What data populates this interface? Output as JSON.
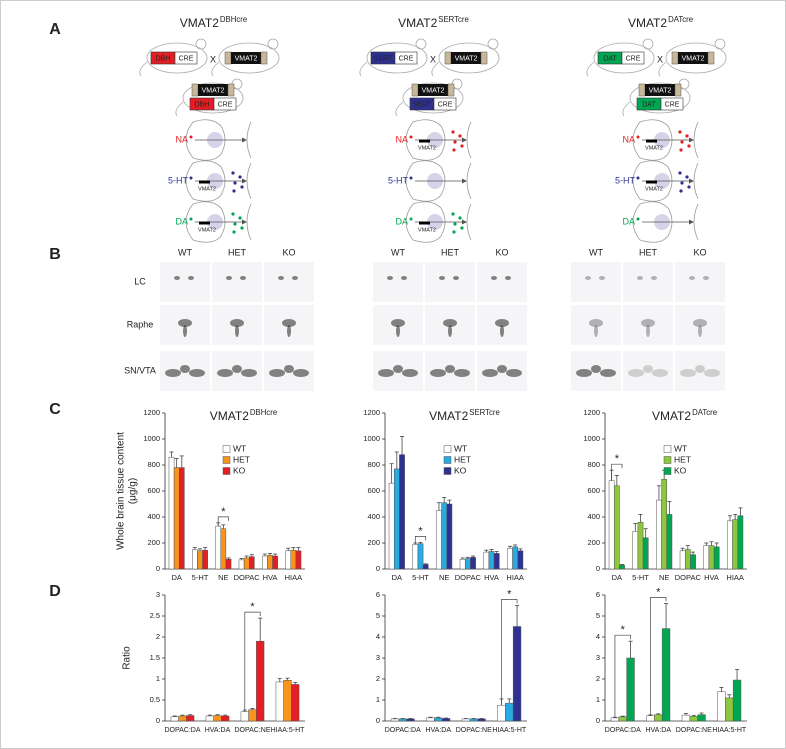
{
  "panel_labels": [
    "A",
    "B",
    "C",
    "D"
  ],
  "panel_a": {
    "columns": [
      {
        "title": "VMAT2",
        "title_superscript": "DBHcre",
        "driver": "DBH",
        "driver_color": "#e31e24",
        "cre": "CRE",
        "cross": "X",
        "vmat2": "VMAT2",
        "sections": [
          {
            "label": "NA",
            "color": "#e31e24"
          },
          {
            "label": "5-HT",
            "color": "#2e3192",
            "tag": "VMAT2"
          },
          {
            "label": "DA",
            "color": "#00a651",
            "tag": "VMAT2"
          }
        ]
      },
      {
        "title": "VMAT2",
        "title_superscript": "SERTcre",
        "driver": "SERT",
        "driver_color": "#2e3192",
        "cre": "CRE",
        "cross": "X",
        "vmat2": "VMAT2",
        "sections": [
          {
            "label": "NA",
            "color": "#e31e24",
            "tag": "VMAT2"
          },
          {
            "label": "5-HT",
            "color": "#2e3192"
          },
          {
            "label": "DA",
            "color": "#00a651",
            "tag": "VMAT2"
          }
        ]
      },
      {
        "title": "VMAT2",
        "title_superscript": "DATcre",
        "driver": "DAT",
        "driver_color": "#00a651",
        "cre": "CRE",
        "cross": "X",
        "vmat2": "VMAT2",
        "sections": [
          {
            "label": "NA",
            "color": "#e31e24",
            "tag": "VMAT2"
          },
          {
            "label": "5-HT",
            "color": "#2e3192",
            "tag": "VMAT2"
          },
          {
            "label": "DA",
            "color": "#00a651"
          }
        ]
      }
    ]
  },
  "panel_b": {
    "columns": [
      "WT",
      "HET",
      "KO"
    ],
    "rows": [
      "LC",
      "Raphe",
      "SN/VTA"
    ]
  },
  "chart_data": [
    {
      "type": "bar",
      "title": "VMAT2",
      "title_superscript": "DBHcre",
      "ylabel": "Whole brain tissue content",
      "ylabel_unit": "(μg/g)",
      "legend": true,
      "categories": [
        "DA",
        "5-HT",
        "NE",
        "DOPAC",
        "HVA",
        "HIAA"
      ],
      "ylim": [
        0,
        1200
      ],
      "yticks": [
        0,
        200,
        400,
        600,
        800,
        1000,
        1200
      ],
      "series": [
        {
          "name": "WT",
          "color": "#ffffff",
          "values": [
            860,
            150,
            330,
            70,
            100,
            140
          ],
          "errors": [
            40,
            15,
            25,
            10,
            15,
            20
          ]
        },
        {
          "name": "HET",
          "color": "#f7941d",
          "values": [
            780,
            140,
            310,
            85,
            105,
            145
          ],
          "errors": [
            70,
            15,
            30,
            15,
            15,
            20
          ]
        },
        {
          "name": "KO",
          "color": "#e31e24",
          "values": [
            780,
            145,
            75,
            95,
            100,
            140
          ],
          "errors": [
            90,
            20,
            10,
            15,
            15,
            25
          ]
        }
      ],
      "annotations": [
        {
          "text": "*",
          "category": "NE"
        }
      ]
    },
    {
      "type": "bar",
      "title": "VMAT2",
      "title_superscript": "SERTcre",
      "legend": true,
      "categories": [
        "DA",
        "5-HT",
        "NE",
        "DOPAC",
        "HVA",
        "HIAA"
      ],
      "ylim": [
        0,
        1200
      ],
      "yticks": [
        0,
        200,
        400,
        600,
        800,
        1000,
        1200
      ],
      "series": [
        {
          "name": "WT",
          "color": "#ffffff",
          "values": [
            660,
            190,
            450,
            75,
            130,
            160
          ],
          "errors": [
            150,
            10,
            60,
            10,
            15,
            15
          ]
        },
        {
          "name": "HET",
          "color": "#29abe2",
          "values": [
            770,
            195,
            510,
            80,
            135,
            170
          ],
          "errors": [
            130,
            10,
            40,
            10,
            15,
            15
          ]
        },
        {
          "name": "KO",
          "color": "#2e3192",
          "values": [
            880,
            35,
            500,
            90,
            120,
            140
          ],
          "errors": [
            140,
            5,
            30,
            10,
            15,
            15
          ]
        }
      ],
      "annotations": [
        {
          "text": "*",
          "category": "5-HT"
        }
      ]
    },
    {
      "type": "bar",
      "title": "VMAT2",
      "title_superscript": "DATcre",
      "legend": true,
      "categories": [
        "DA",
        "5-HT",
        "NE",
        "DOPAC",
        "HVA",
        "HIAA"
      ],
      "ylim": [
        0,
        1200
      ],
      "yticks": [
        0,
        200,
        400,
        600,
        800,
        1000,
        1200
      ],
      "series": [
        {
          "name": "WT",
          "color": "#ffffff",
          "values": [
            680,
            290,
            530,
            140,
            180,
            370
          ],
          "errors": [
            80,
            60,
            110,
            20,
            20,
            40
          ]
        },
        {
          "name": "HET",
          "color": "#8dc63f",
          "values": [
            640,
            360,
            690,
            150,
            180,
            380
          ],
          "errors": [
            80,
            60,
            70,
            30,
            30,
            40
          ]
        },
        {
          "name": "KO",
          "color": "#00a651",
          "values": [
            30,
            240,
            420,
            110,
            170,
            410
          ],
          "errors": [
            5,
            70,
            100,
            20,
            30,
            60
          ]
        }
      ],
      "annotations": [
        {
          "text": "*",
          "category": "DA"
        }
      ]
    },
    {
      "type": "bar",
      "ylabel": "Ratio",
      "categories": [
        "DOPAC:DA",
        "HVA:DA",
        "DOPAC:NE",
        "HIAA:5-HT"
      ],
      "ylim": [
        0,
        3
      ],
      "yticks": [
        0,
        0.5,
        1,
        1.5,
        2,
        2.5,
        3
      ],
      "series": [
        {
          "name": "WT",
          "color": "#ffffff",
          "values": [
            0.1,
            0.12,
            0.22,
            0.93
          ],
          "errors": [
            0.02,
            0.02,
            0.04,
            0.08
          ]
        },
        {
          "name": "HET",
          "color": "#f7941d",
          "values": [
            0.12,
            0.13,
            0.27,
            0.97
          ],
          "errors": [
            0.02,
            0.02,
            0.03,
            0.05
          ]
        },
        {
          "name": "KO",
          "color": "#e31e24",
          "values": [
            0.13,
            0.12,
            1.9,
            0.87
          ],
          "errors": [
            0.02,
            0.02,
            0.55,
            0.05
          ]
        }
      ],
      "annotations": [
        {
          "text": "*",
          "category": "DOPAC:NE"
        }
      ]
    },
    {
      "type": "bar",
      "categories": [
        "DOPAC:DA",
        "HVA:DA",
        "DOPAC:NE",
        "HIAA:5-HT"
      ],
      "ylim": [
        0,
        6
      ],
      "yticks": [
        0,
        1,
        2,
        3,
        4,
        5,
        6
      ],
      "series": [
        {
          "name": "WT",
          "color": "#ffffff",
          "values": [
            0.1,
            0.15,
            0.1,
            0.75
          ],
          "errors": [
            0.02,
            0.03,
            0.02,
            0.3
          ]
        },
        {
          "name": "HET",
          "color": "#29abe2",
          "values": [
            0.1,
            0.15,
            0.1,
            0.85
          ],
          "errors": [
            0.02,
            0.03,
            0.02,
            0.2
          ]
        },
        {
          "name": "KO",
          "color": "#2e3192",
          "values": [
            0.1,
            0.12,
            0.1,
            4.5
          ],
          "errors": [
            0.02,
            0.02,
            0.02,
            1.0
          ]
        }
      ],
      "annotations": [
        {
          "text": "*",
          "category": "HIAA:5-HT"
        }
      ]
    },
    {
      "type": "bar",
      "categories": [
        "DOPAC:DA",
        "HVA:DA",
        "DOPAC:NE",
        "HIAA:5-HT"
      ],
      "ylim": [
        0,
        6
      ],
      "yticks": [
        0,
        1,
        2,
        3,
        4,
        5,
        6
      ],
      "series": [
        {
          "name": "WT",
          "color": "#ffffff",
          "values": [
            0.15,
            0.25,
            0.28,
            1.4
          ],
          "errors": [
            0.03,
            0.04,
            0.08,
            0.2
          ]
        },
        {
          "name": "HET",
          "color": "#8dc63f",
          "values": [
            0.2,
            0.3,
            0.22,
            1.1
          ],
          "errors": [
            0.03,
            0.04,
            0.05,
            0.15
          ]
        },
        {
          "name": "KO",
          "color": "#00a651",
          "values": [
            3.0,
            4.4,
            0.3,
            1.95
          ],
          "errors": [
            0.8,
            1.2,
            0.08,
            0.5
          ]
        }
      ],
      "annotations": [
        {
          "text": "*",
          "category": "DOPAC:DA"
        },
        {
          "text": "*",
          "category": "HVA:DA"
        }
      ]
    }
  ]
}
